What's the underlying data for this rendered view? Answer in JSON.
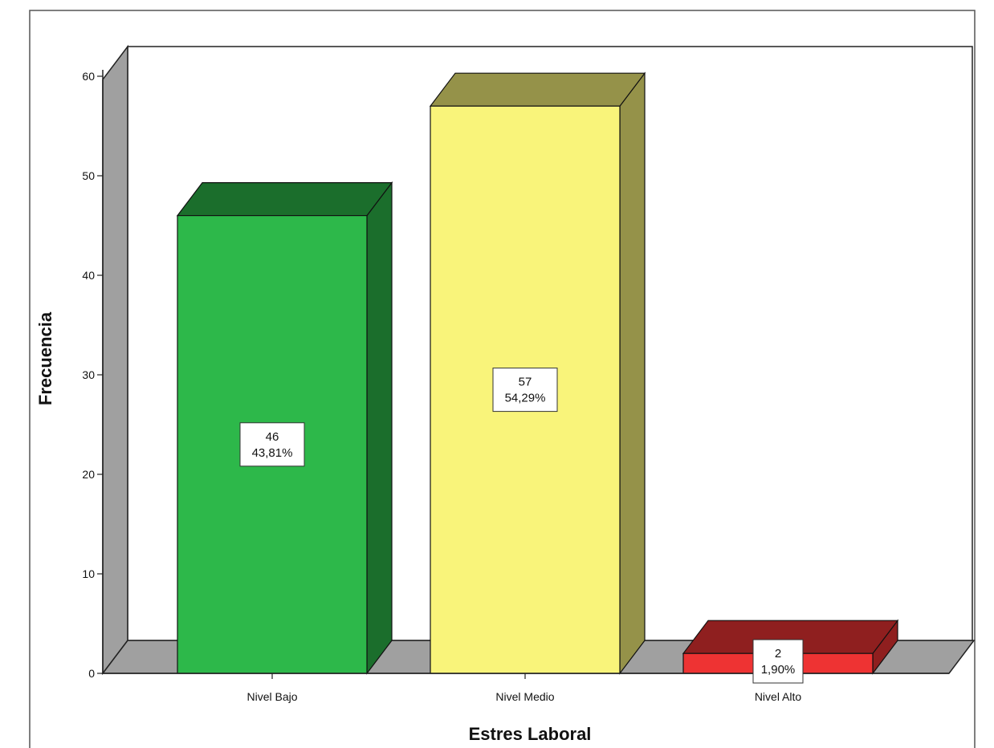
{
  "chart_data": {
    "type": "bar",
    "style": "3d",
    "categories": [
      "Nivel Bajo",
      "Nivel Medio",
      "Nivel Alto"
    ],
    "values": [
      46,
      57,
      2
    ],
    "percent_labels": [
      "43,81%",
      "54,29%",
      "1,90%"
    ],
    "colors": [
      "#2db84a",
      "#f9f47a",
      "#ee3333"
    ],
    "xlabel": "Estres Laboral",
    "ylabel": "Frecuencia",
    "ylim": [
      0,
      60
    ],
    "yticks": [
      0,
      10,
      20,
      30,
      40,
      50,
      60
    ],
    "grid": false,
    "legend": "none"
  }
}
